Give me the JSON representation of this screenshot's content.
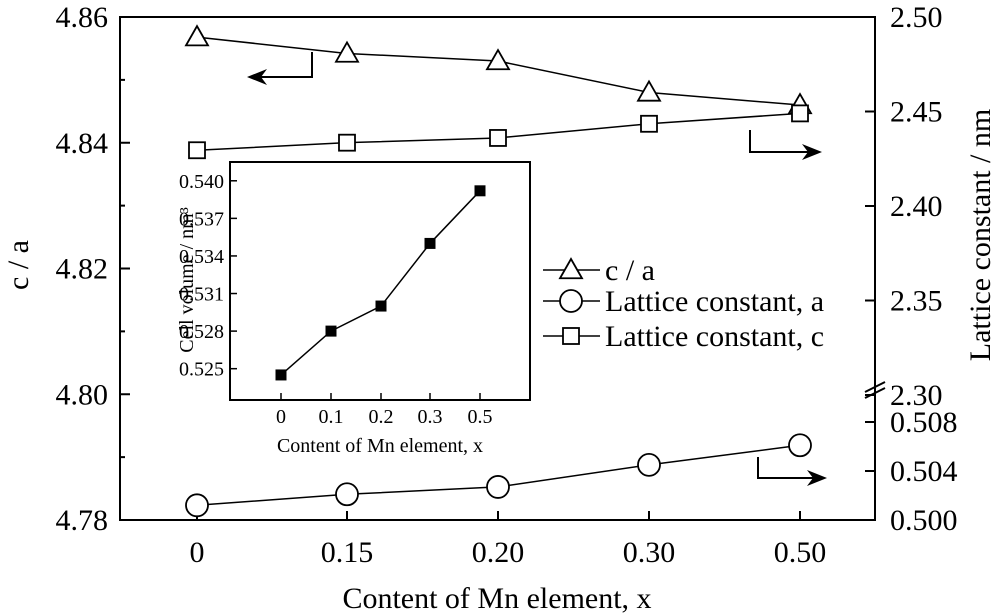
{
  "chart_data": [
    {
      "type": "line",
      "x_ticks": [
        "0",
        "0.15",
        "0.20",
        "0.30",
        "0.50"
      ],
      "xlabel": "Content of Mn element, x",
      "ylabel_left": "c / a",
      "ylabel_right": "Lattice constant / nm",
      "y_left_ticks": [
        "4.78",
        "4.80",
        "4.82",
        "4.84",
        "4.86"
      ],
      "y_left_lim": [
        4.78,
        4.86
      ],
      "y_right_ticks_upper": [
        "2.30",
        "2.35",
        "2.40",
        "2.45",
        "2.50"
      ],
      "y_right_lim_upper": [
        2.3,
        2.5
      ],
      "y_right_ticks_lower": [
        "0.500",
        "0.504",
        "0.508"
      ],
      "y_right_lim_lower": [
        0.5,
        0.508
      ],
      "right_axis_break": true,
      "series": [
        {
          "name": "c / a",
          "marker": "triangle",
          "axis": "left",
          "values": [
            4.8568,
            4.8542,
            4.853,
            4.848,
            4.846
          ]
        },
        {
          "name": "Lattice constant, a",
          "marker": "circle",
          "axis": "right-lower",
          "values": [
            0.5012,
            0.5021,
            0.5027,
            0.5045,
            0.5061
          ]
        },
        {
          "name": "Lattice constant, c",
          "marker": "square",
          "axis": "right-upper",
          "values": [
            2.4295,
            2.4335,
            2.436,
            2.4435,
            2.449
          ]
        }
      ],
      "legend_position": "right",
      "annotations": [
        {
          "type": "arrow",
          "direction": "left",
          "target": "c / a"
        },
        {
          "type": "arrow",
          "direction": "right",
          "target": "Lattice constant, c"
        },
        {
          "type": "arrow",
          "direction": "right",
          "target": "Lattice constant, a"
        }
      ]
    },
    {
      "type": "line",
      "title": "",
      "categories": [
        "0",
        "0.1",
        "0.2",
        "0.3",
        "0.5"
      ],
      "xlabel": "Content of Mn element, x",
      "ylabel": "Cell volume / nm³",
      "y_ticks": [
        "0.525",
        "0.528",
        "0.531",
        "0.534",
        "0.537",
        "0.540"
      ],
      "ylim": [
        0.5225,
        0.5415
      ],
      "series": [
        {
          "marker": "filled-square",
          "values": [
            0.5245,
            0.528,
            0.53,
            0.535,
            0.5392
          ]
        }
      ]
    }
  ]
}
